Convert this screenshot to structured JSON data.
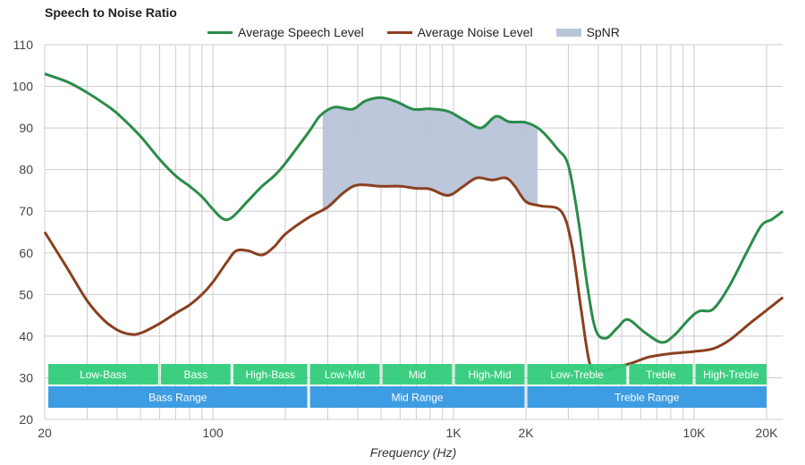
{
  "chart_data": {
    "type": "line",
    "title": "Speech to Noise Ratio",
    "xlabel": "Frequency (Hz)",
    "ylabel": "",
    "x_scale": "log",
    "xlim": [
      20,
      23400
    ],
    "ylim": [
      20,
      110
    ],
    "grid": true,
    "legend_position": "top",
    "y_ticks": [
      20,
      30,
      40,
      50,
      60,
      70,
      80,
      90,
      100,
      110
    ],
    "x_ticks": [
      {
        "value": 20,
        "label": "20"
      },
      {
        "value": 100,
        "label": "100"
      },
      {
        "value": 1000,
        "label": "1K"
      },
      {
        "value": 2000,
        "label": "2K"
      },
      {
        "value": 10000,
        "label": "10K"
      },
      {
        "value": 20000,
        "label": "20K"
      }
    ],
    "x_minor_gridlines": [
      30,
      40,
      50,
      60,
      70,
      80,
      90,
      200,
      300,
      400,
      500,
      600,
      700,
      800,
      900,
      3000,
      4000,
      5000,
      6000,
      7000,
      8000,
      9000
    ],
    "series": [
      {
        "name": "Average Speech Level",
        "color": "#2a8c4a",
        "points": [
          [
            20,
            103
          ],
          [
            25,
            101
          ],
          [
            30,
            98.5
          ],
          [
            35,
            96
          ],
          [
            40,
            93.5
          ],
          [
            50,
            88
          ],
          [
            60,
            82.5
          ],
          [
            70,
            78.5
          ],
          [
            80,
            76
          ],
          [
            90,
            73.5
          ],
          [
            100,
            70.5
          ],
          [
            110,
            68.2
          ],
          [
            120,
            68.5
          ],
          [
            140,
            72.5
          ],
          [
            160,
            76
          ],
          [
            180,
            78.5
          ],
          [
            200,
            81.5
          ],
          [
            250,
            89
          ],
          [
            280,
            93
          ],
          [
            320,
            95
          ],
          [
            380,
            94.5
          ],
          [
            430,
            96.5
          ],
          [
            500,
            97.3
          ],
          [
            580,
            96.3
          ],
          [
            680,
            94.5
          ],
          [
            800,
            94.6
          ],
          [
            950,
            94
          ],
          [
            1100,
            92
          ],
          [
            1300,
            90
          ],
          [
            1500,
            92.8
          ],
          [
            1700,
            91.5
          ],
          [
            2000,
            91.3
          ],
          [
            2300,
            89.5
          ],
          [
            2700,
            85
          ],
          [
            3000,
            81
          ],
          [
            3300,
            68
          ],
          [
            3600,
            52
          ],
          [
            3900,
            41.5
          ],
          [
            4300,
            39.5
          ],
          [
            4800,
            42
          ],
          [
            5300,
            44
          ],
          [
            6200,
            41
          ],
          [
            7300,
            38.5
          ],
          [
            8200,
            40
          ],
          [
            9500,
            44
          ],
          [
            10500,
            46
          ],
          [
            12000,
            46.5
          ],
          [
            14000,
            52
          ],
          [
            16500,
            60
          ],
          [
            19000,
            66.5
          ],
          [
            21000,
            68
          ],
          [
            23400,
            70
          ]
        ]
      },
      {
        "name": "Average Noise Level",
        "color": "#8b4020",
        "points": [
          [
            20,
            65
          ],
          [
            25,
            56
          ],
          [
            30,
            48.5
          ],
          [
            35,
            44
          ],
          [
            40,
            41.5
          ],
          [
            45,
            40.5
          ],
          [
            50,
            40.7
          ],
          [
            60,
            43
          ],
          [
            70,
            45.5
          ],
          [
            80,
            47.5
          ],
          [
            90,
            50
          ],
          [
            100,
            53
          ],
          [
            115,
            58
          ],
          [
            125,
            60.5
          ],
          [
            140,
            60.5
          ],
          [
            160,
            59.5
          ],
          [
            180,
            61.5
          ],
          [
            200,
            64.5
          ],
          [
            250,
            68.5
          ],
          [
            300,
            71
          ],
          [
            350,
            74.5
          ],
          [
            400,
            76.3
          ],
          [
            500,
            76
          ],
          [
            600,
            76
          ],
          [
            700,
            75.5
          ],
          [
            800,
            75.3
          ],
          [
            950,
            73.8
          ],
          [
            1100,
            76
          ],
          [
            1250,
            78
          ],
          [
            1450,
            77.5
          ],
          [
            1650,
            78
          ],
          [
            1800,
            76
          ],
          [
            2000,
            72.3
          ],
          [
            2300,
            71.3
          ],
          [
            2800,
            70
          ],
          [
            3100,
            62
          ],
          [
            3400,
            46
          ],
          [
            3700,
            33
          ],
          [
            4100,
            31.5
          ],
          [
            4700,
            32.5
          ],
          [
            5500,
            33.5
          ],
          [
            6500,
            35
          ],
          [
            8000,
            35.8
          ],
          [
            10000,
            36.3
          ],
          [
            12000,
            37
          ],
          [
            14000,
            39
          ],
          [
            17000,
            43
          ],
          [
            20000,
            46.2
          ],
          [
            23400,
            49.3
          ]
        ]
      }
    ],
    "spnr": {
      "name": "SpNR",
      "color": "#b8c4d9",
      "range": [
        286,
        2234
      ]
    },
    "bands": [
      {
        "label": "Low-Bass",
        "range": [
          20,
          60
        ]
      },
      {
        "label": "Bass",
        "range": [
          60,
          120
        ]
      },
      {
        "label": "High-Bass",
        "range": [
          120,
          250
        ]
      },
      {
        "label": "Low-Mid",
        "range": [
          250,
          500
        ]
      },
      {
        "label": "Mid",
        "range": [
          500,
          1000
        ]
      },
      {
        "label": "High-Mid",
        "range": [
          1000,
          2000
        ]
      },
      {
        "label": "Low-Treble",
        "range": [
          2000,
          5300
        ]
      },
      {
        "label": "Treble",
        "range": [
          5300,
          10000
        ]
      },
      {
        "label": "High-Treble",
        "range": [
          10000,
          20000
        ]
      }
    ],
    "ranges": [
      {
        "label": "Bass Range",
        "range": [
          20,
          250
        ]
      },
      {
        "label": "Mid Range",
        "range": [
          250,
          2000
        ]
      },
      {
        "label": "Treble Range",
        "range": [
          2000,
          20000
        ]
      }
    ],
    "band_color": "#33cc7a",
    "range_color": "#3498e0"
  }
}
